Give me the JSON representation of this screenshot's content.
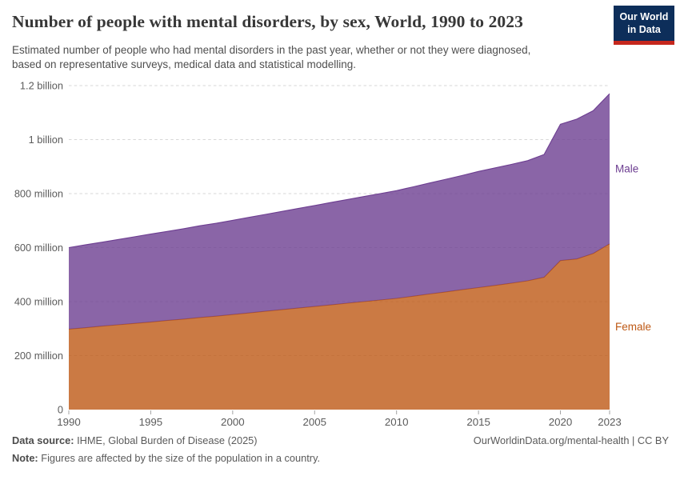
{
  "header": {
    "title": "Number of people with mental disorders, by sex, World, 1990 to 2023",
    "subtitle_lines": [
      "Estimated number of people who had mental disorders in the past year, whether or not they were diagnosed,",
      "based on representative surveys, medical data and statistical modelling."
    ],
    "logo": {
      "line1": "Our World",
      "line2": "in Data",
      "bg_color": "#0d2e5a",
      "accent_color": "#c5271d"
    }
  },
  "chart_data": {
    "type": "area",
    "stacked": true,
    "title": "Number of people with mental disorders, by sex, World, 1990 to 2023",
    "unit": "people",
    "values_unit": "millions",
    "x": [
      1990,
      1991,
      1992,
      1993,
      1994,
      1995,
      1996,
      1997,
      1998,
      1999,
      2000,
      2001,
      2002,
      2003,
      2004,
      2005,
      2006,
      2007,
      2008,
      2009,
      2010,
      2011,
      2012,
      2013,
      2014,
      2015,
      2016,
      2017,
      2018,
      2019,
      2020,
      2021,
      2022,
      2023
    ],
    "series": [
      {
        "name": "Female",
        "color": "#BE5915",
        "fill_opacity": 0.8,
        "values": [
          298,
          303,
          309,
          314,
          319,
          324,
          330,
          335,
          341,
          346,
          352,
          358,
          364,
          370,
          376,
          382,
          388,
          394,
          400,
          406,
          412,
          420,
          428,
          436,
          444,
          452,
          460,
          468,
          477,
          490,
          552,
          558,
          578,
          614
        ]
      },
      {
        "name": "Male",
        "color": "#6D3E91",
        "fill_opacity": 0.8,
        "values": [
          302,
          307,
          311,
          316,
          321,
          326,
          330,
          335,
          340,
          344,
          349,
          354,
          359,
          364,
          369,
          374,
          379,
          384,
          389,
          394,
          399,
          405,
          411,
          417,
          423,
          430,
          435,
          440,
          445,
          455,
          505,
          518,
          529,
          556
        ]
      }
    ],
    "xlim": [
      1990,
      2023
    ],
    "ylim": [
      0,
      1200
    ],
    "yticks": [
      {
        "value": 0,
        "label": "0"
      },
      {
        "value": 200,
        "label": "200 million"
      },
      {
        "value": 400,
        "label": "400 million"
      },
      {
        "value": 600,
        "label": "600 million"
      },
      {
        "value": 800,
        "label": "800 million"
      },
      {
        "value": 1000,
        "label": "1 billion"
      },
      {
        "value": 1200,
        "label": "1.2 billion"
      }
    ],
    "xticks": [
      {
        "value": 1990,
        "label": "1990"
      },
      {
        "value": 1995,
        "label": "1995"
      },
      {
        "value": 2000,
        "label": "2000"
      },
      {
        "value": 2005,
        "label": "2005"
      },
      {
        "value": 2010,
        "label": "2010"
      },
      {
        "value": 2015,
        "label": "2015"
      },
      {
        "value": 2020,
        "label": "2020"
      },
      {
        "value": 2023,
        "label": "2023"
      }
    ],
    "grid": "dashed horizontal",
    "legend_position": "right-of-plot"
  },
  "footer": {
    "source_label": "Data source:",
    "source_text": " IHME, Global Burden of Disease (2025)",
    "note_label": "Note:",
    "note_text": " Figures are affected by the size of the population in a country.",
    "cite": "OurWorldinData.org/mental-health | CC BY"
  }
}
